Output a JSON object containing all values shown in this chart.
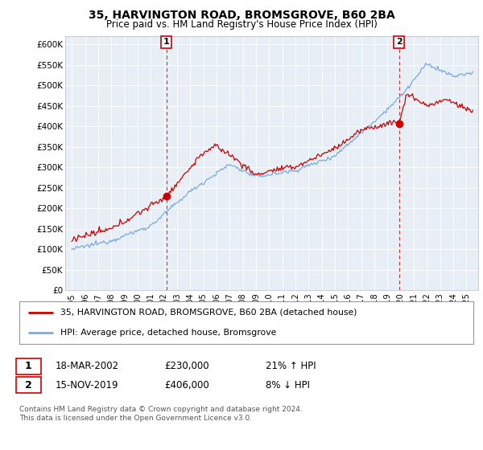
{
  "title": "35, HARVINGTON ROAD, BROMSGROVE, B60 2BA",
  "subtitle": "Price paid vs. HM Land Registry's House Price Index (HPI)",
  "ylabel_ticks": [
    "£0",
    "£50K",
    "£100K",
    "£150K",
    "£200K",
    "£250K",
    "£300K",
    "£350K",
    "£400K",
    "£450K",
    "£500K",
    "£550K",
    "£600K"
  ],
  "ytick_values": [
    0,
    50000,
    100000,
    150000,
    200000,
    250000,
    300000,
    350000,
    400000,
    450000,
    500000,
    550000,
    600000
  ],
  "ylim": [
    0,
    620000
  ],
  "red_color": "#cc0000",
  "blue_color": "#7aaadd",
  "chart_bg": "#e8eef5",
  "dashed_red_color": "#cc0000",
  "marker1_year": 2002.2,
  "marker1_price": 230000,
  "marker2_year": 2019.88,
  "marker2_price": 406000,
  "legend_line1": "35, HARVINGTON ROAD, BROMSGROVE, B60 2BA (detached house)",
  "legend_line2": "HPI: Average price, detached house, Bromsgrove",
  "table_row1": [
    "1",
    "18-MAR-2002",
    "£230,000",
    "21% ↑ HPI"
  ],
  "table_row2": [
    "2",
    "15-NOV-2019",
    "£406,000",
    "8% ↓ HPI"
  ],
  "footer": "Contains HM Land Registry data © Crown copyright and database right 2024.\nThis data is licensed under the Open Government Licence v3.0.",
  "background_color": "#ffffff"
}
